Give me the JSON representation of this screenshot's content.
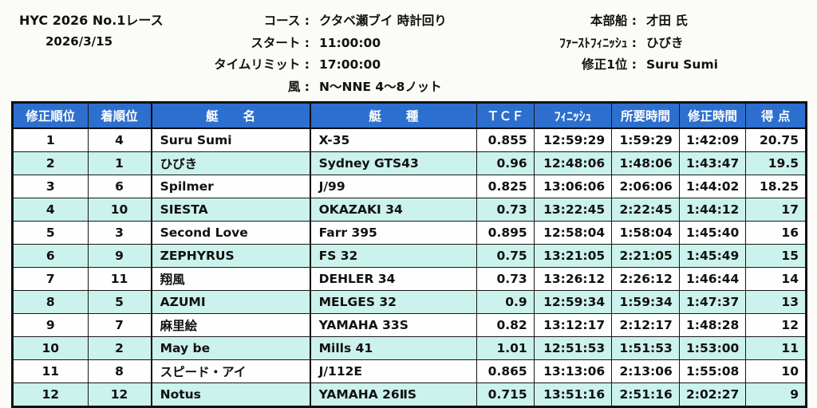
{
  "header": {
    "title": "HYC 2026 No.1レース",
    "date": "2026/3/15",
    "center_rows": [
      {
        "label": "コース :",
        "value": "クタベ瀬ブイ 時計回り"
      },
      {
        "label": "スタート :",
        "value": "11:00:00"
      },
      {
        "label": "タイムリミット :",
        "value": "17:00:00"
      },
      {
        "label": "風 :",
        "value": "N〜NNE 4〜8ノット"
      }
    ],
    "right_rows": [
      {
        "label": "本部船 :",
        "value": "才田 氏"
      },
      {
        "label": "ﾌｧｰｽﾄﾌｨﾆｯｼｭ :",
        "value": "ひびき"
      },
      {
        "label": "修正1位 :",
        "value": "Suru Sumi"
      }
    ]
  },
  "table": {
    "columns": [
      "修正順位",
      "着順位",
      "艇　　名",
      "艇　　種",
      "ＴＣＦ",
      "ﾌｨﾆｯｼｭ",
      "所要時間",
      "修正時間",
      "得 点"
    ],
    "rows": [
      [
        "1",
        "4",
        "Suru Sumi",
        "X-35",
        "0.855",
        "12:59:29",
        "1:59:29",
        "1:42:09",
        "20.75"
      ],
      [
        "2",
        "1",
        "ひびき",
        "Sydney GTS43",
        "0.96",
        "12:48:06",
        "1:48:06",
        "1:43:47",
        "19.5"
      ],
      [
        "3",
        "6",
        "Spilmer",
        "J/99",
        "0.825",
        "13:06:06",
        "2:06:06",
        "1:44:02",
        "18.25"
      ],
      [
        "4",
        "10",
        "SIESTA",
        "OKAZAKI 34",
        "0.73",
        "13:22:45",
        "2:22:45",
        "1:44:12",
        "17"
      ],
      [
        "5",
        "3",
        "Second Love",
        "Farr 395",
        "0.895",
        "12:58:04",
        "1:58:04",
        "1:45:40",
        "16"
      ],
      [
        "6",
        "9",
        "ZEPHYRUS",
        "FS 32",
        "0.75",
        "13:21:05",
        "2:21:05",
        "1:45:49",
        "15"
      ],
      [
        "7",
        "11",
        "翔風",
        "DEHLER 34",
        "0.73",
        "13:26:12",
        "2:26:12",
        "1:46:44",
        "14"
      ],
      [
        "8",
        "5",
        "AZUMI",
        "MELGES 32",
        "0.9",
        "12:59:34",
        "1:59:34",
        "1:47:37",
        "13"
      ],
      [
        "9",
        "7",
        "麻里絵",
        "YAMAHA 33S",
        "0.82",
        "13:12:17",
        "2:12:17",
        "1:48:28",
        "12"
      ],
      [
        "10",
        "2",
        "May be",
        "Mills 41",
        "1.01",
        "12:51:53",
        "1:51:53",
        "1:53:00",
        "11"
      ],
      [
        "11",
        "8",
        "スピード・アイ",
        "J/112E",
        "0.865",
        "13:13:06",
        "2:13:06",
        "1:55:08",
        "10"
      ],
      [
        "12",
        "12",
        "Notus",
        "YAMAHA 26ⅡS",
        "0.715",
        "13:51:16",
        "2:51:16",
        "2:02:27",
        "9"
      ]
    ]
  },
  "colors": {
    "header_bg": "#2D6FCE",
    "stripe_bg": "#CBF2EC",
    "border": "#161616"
  }
}
